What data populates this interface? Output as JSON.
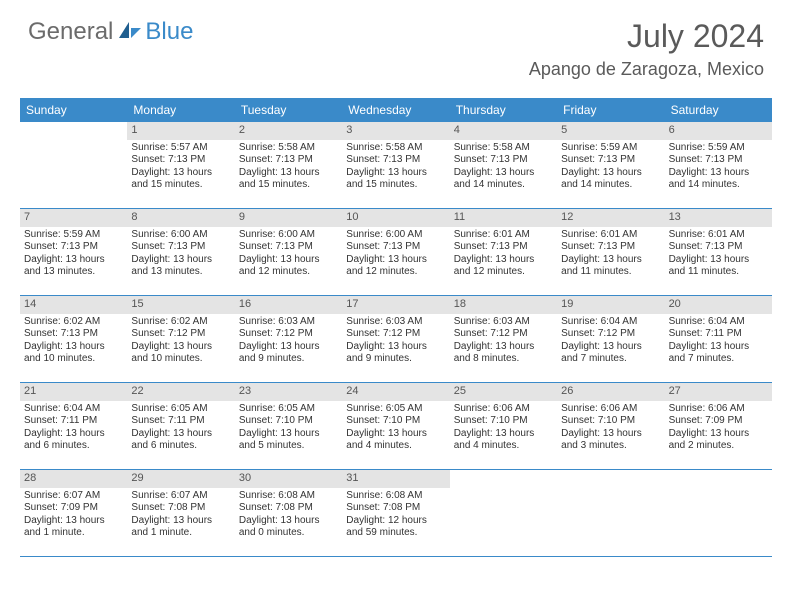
{
  "brand": {
    "part1": "General",
    "part2": "Blue"
  },
  "title": "July 2024",
  "location": "Apango de Zaragoza, Mexico",
  "colors": {
    "header_bg": "#3a8ac9",
    "header_text": "#ffffff",
    "daynum_bg": "#e4e4e4",
    "text": "#333333",
    "rule": "#3a8ac9",
    "logo_gray": "#6b6b6b",
    "logo_blue": "#3a8ac9"
  },
  "weekdays": [
    "Sunday",
    "Monday",
    "Tuesday",
    "Wednesday",
    "Thursday",
    "Friday",
    "Saturday"
  ],
  "weeks": [
    [
      {
        "n": "",
        "sr": "",
        "ss": "",
        "dl": ""
      },
      {
        "n": "1",
        "sr": "Sunrise: 5:57 AM",
        "ss": "Sunset: 7:13 PM",
        "dl": "Daylight: 13 hours and 15 minutes."
      },
      {
        "n": "2",
        "sr": "Sunrise: 5:58 AM",
        "ss": "Sunset: 7:13 PM",
        "dl": "Daylight: 13 hours and 15 minutes."
      },
      {
        "n": "3",
        "sr": "Sunrise: 5:58 AM",
        "ss": "Sunset: 7:13 PM",
        "dl": "Daylight: 13 hours and 15 minutes."
      },
      {
        "n": "4",
        "sr": "Sunrise: 5:58 AM",
        "ss": "Sunset: 7:13 PM",
        "dl": "Daylight: 13 hours and 14 minutes."
      },
      {
        "n": "5",
        "sr": "Sunrise: 5:59 AM",
        "ss": "Sunset: 7:13 PM",
        "dl": "Daylight: 13 hours and 14 minutes."
      },
      {
        "n": "6",
        "sr": "Sunrise: 5:59 AM",
        "ss": "Sunset: 7:13 PM",
        "dl": "Daylight: 13 hours and 14 minutes."
      }
    ],
    [
      {
        "n": "7",
        "sr": "Sunrise: 5:59 AM",
        "ss": "Sunset: 7:13 PM",
        "dl": "Daylight: 13 hours and 13 minutes."
      },
      {
        "n": "8",
        "sr": "Sunrise: 6:00 AM",
        "ss": "Sunset: 7:13 PM",
        "dl": "Daylight: 13 hours and 13 minutes."
      },
      {
        "n": "9",
        "sr": "Sunrise: 6:00 AM",
        "ss": "Sunset: 7:13 PM",
        "dl": "Daylight: 13 hours and 12 minutes."
      },
      {
        "n": "10",
        "sr": "Sunrise: 6:00 AM",
        "ss": "Sunset: 7:13 PM",
        "dl": "Daylight: 13 hours and 12 minutes."
      },
      {
        "n": "11",
        "sr": "Sunrise: 6:01 AM",
        "ss": "Sunset: 7:13 PM",
        "dl": "Daylight: 13 hours and 12 minutes."
      },
      {
        "n": "12",
        "sr": "Sunrise: 6:01 AM",
        "ss": "Sunset: 7:13 PM",
        "dl": "Daylight: 13 hours and 11 minutes."
      },
      {
        "n": "13",
        "sr": "Sunrise: 6:01 AM",
        "ss": "Sunset: 7:13 PM",
        "dl": "Daylight: 13 hours and 11 minutes."
      }
    ],
    [
      {
        "n": "14",
        "sr": "Sunrise: 6:02 AM",
        "ss": "Sunset: 7:13 PM",
        "dl": "Daylight: 13 hours and 10 minutes."
      },
      {
        "n": "15",
        "sr": "Sunrise: 6:02 AM",
        "ss": "Sunset: 7:12 PM",
        "dl": "Daylight: 13 hours and 10 minutes."
      },
      {
        "n": "16",
        "sr": "Sunrise: 6:03 AM",
        "ss": "Sunset: 7:12 PM",
        "dl": "Daylight: 13 hours and 9 minutes."
      },
      {
        "n": "17",
        "sr": "Sunrise: 6:03 AM",
        "ss": "Sunset: 7:12 PM",
        "dl": "Daylight: 13 hours and 9 minutes."
      },
      {
        "n": "18",
        "sr": "Sunrise: 6:03 AM",
        "ss": "Sunset: 7:12 PM",
        "dl": "Daylight: 13 hours and 8 minutes."
      },
      {
        "n": "19",
        "sr": "Sunrise: 6:04 AM",
        "ss": "Sunset: 7:12 PM",
        "dl": "Daylight: 13 hours and 7 minutes."
      },
      {
        "n": "20",
        "sr": "Sunrise: 6:04 AM",
        "ss": "Sunset: 7:11 PM",
        "dl": "Daylight: 13 hours and 7 minutes."
      }
    ],
    [
      {
        "n": "21",
        "sr": "Sunrise: 6:04 AM",
        "ss": "Sunset: 7:11 PM",
        "dl": "Daylight: 13 hours and 6 minutes."
      },
      {
        "n": "22",
        "sr": "Sunrise: 6:05 AM",
        "ss": "Sunset: 7:11 PM",
        "dl": "Daylight: 13 hours and 6 minutes."
      },
      {
        "n": "23",
        "sr": "Sunrise: 6:05 AM",
        "ss": "Sunset: 7:10 PM",
        "dl": "Daylight: 13 hours and 5 minutes."
      },
      {
        "n": "24",
        "sr": "Sunrise: 6:05 AM",
        "ss": "Sunset: 7:10 PM",
        "dl": "Daylight: 13 hours and 4 minutes."
      },
      {
        "n": "25",
        "sr": "Sunrise: 6:06 AM",
        "ss": "Sunset: 7:10 PM",
        "dl": "Daylight: 13 hours and 4 minutes."
      },
      {
        "n": "26",
        "sr": "Sunrise: 6:06 AM",
        "ss": "Sunset: 7:10 PM",
        "dl": "Daylight: 13 hours and 3 minutes."
      },
      {
        "n": "27",
        "sr": "Sunrise: 6:06 AM",
        "ss": "Sunset: 7:09 PM",
        "dl": "Daylight: 13 hours and 2 minutes."
      }
    ],
    [
      {
        "n": "28",
        "sr": "Sunrise: 6:07 AM",
        "ss": "Sunset: 7:09 PM",
        "dl": "Daylight: 13 hours and 1 minute."
      },
      {
        "n": "29",
        "sr": "Sunrise: 6:07 AM",
        "ss": "Sunset: 7:08 PM",
        "dl": "Daylight: 13 hours and 1 minute."
      },
      {
        "n": "30",
        "sr": "Sunrise: 6:08 AM",
        "ss": "Sunset: 7:08 PM",
        "dl": "Daylight: 13 hours and 0 minutes."
      },
      {
        "n": "31",
        "sr": "Sunrise: 6:08 AM",
        "ss": "Sunset: 7:08 PM",
        "dl": "Daylight: 12 hours and 59 minutes."
      },
      {
        "n": "",
        "sr": "",
        "ss": "",
        "dl": ""
      },
      {
        "n": "",
        "sr": "",
        "ss": "",
        "dl": ""
      },
      {
        "n": "",
        "sr": "",
        "ss": "",
        "dl": ""
      }
    ]
  ]
}
